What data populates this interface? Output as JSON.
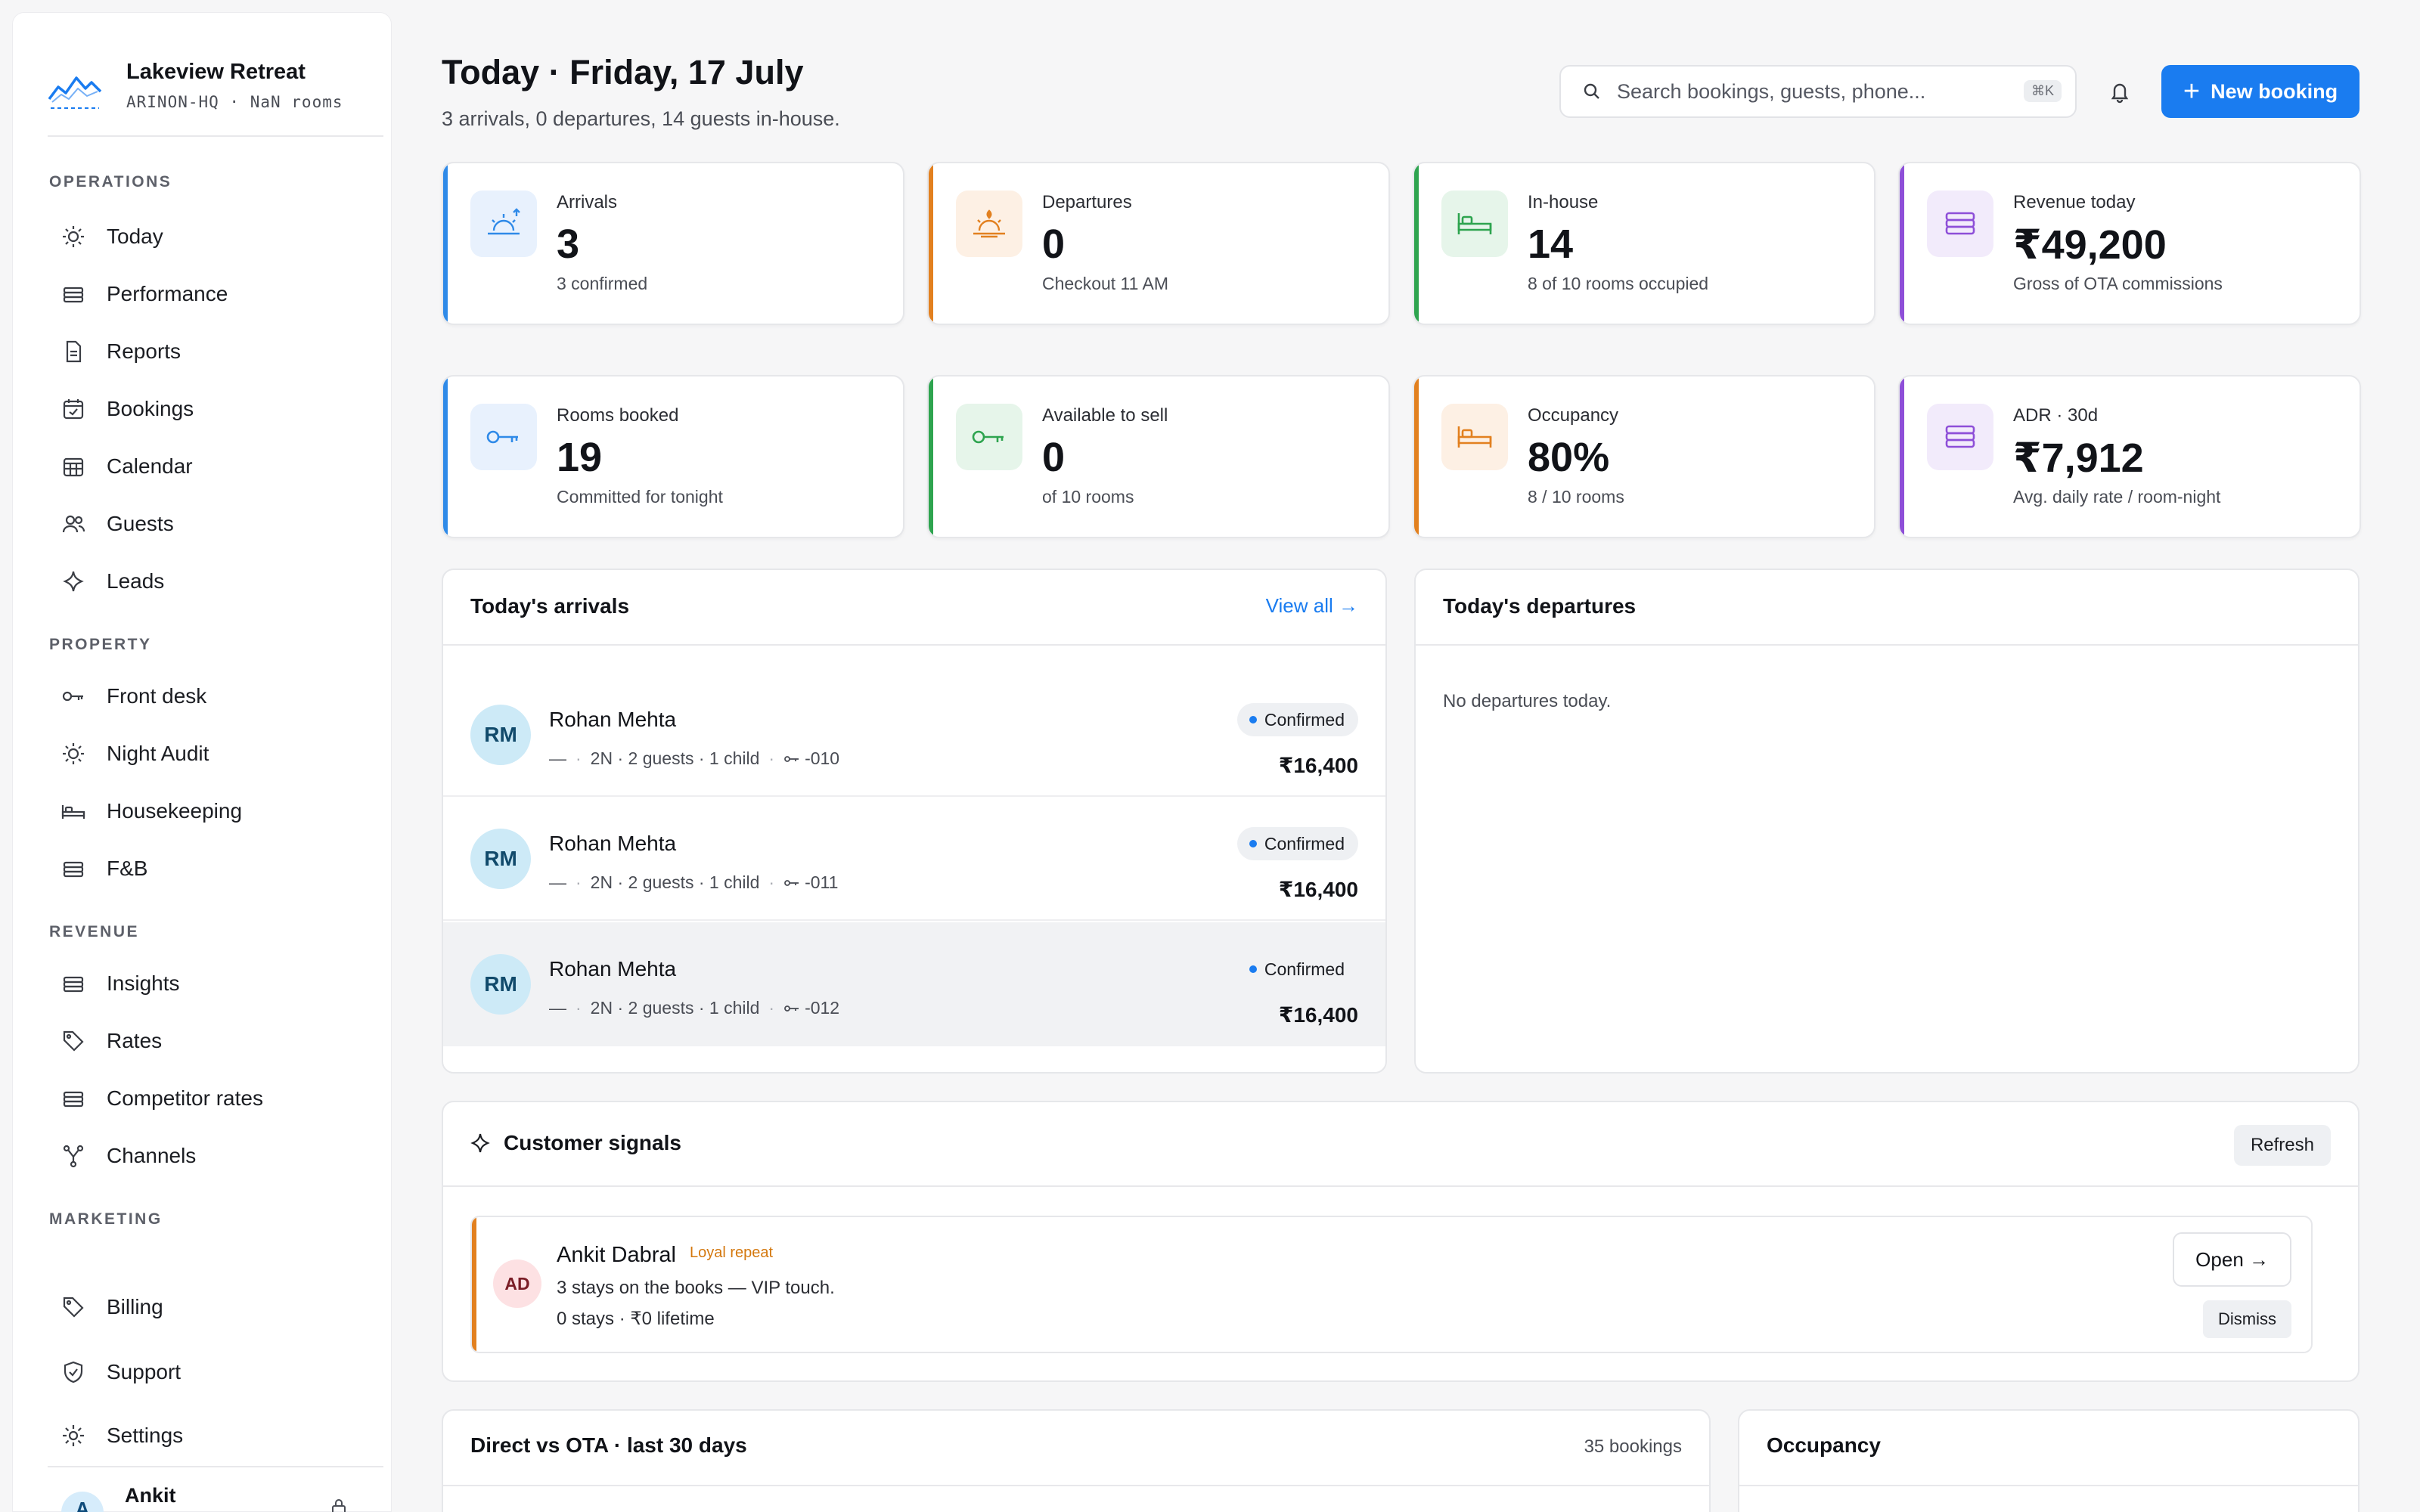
{
  "sidebar": {
    "brand": {
      "title": "Lakeview Retreat",
      "subtitle": "ARINON-HQ · NaN rooms"
    },
    "sections": {
      "operations": "OPERATIONS",
      "property": "PROPERTY",
      "revenue": "REVENUE",
      "marketing": "MARKETING"
    },
    "items": {
      "today": "Today",
      "performance": "Performance",
      "reports": "Reports",
      "bookings": "Bookings",
      "calendar": "Calendar",
      "guests": "Guests",
      "leads": "Leads",
      "front_desk": "Front desk",
      "night_audit": "Night Audit",
      "housekeeping": "Housekeeping",
      "fnb": "F&B",
      "insights": "Insights",
      "rates": "Rates",
      "competitor_rates": "Competitor rates",
      "channels": "Channels",
      "billing": "Billing",
      "support": "Support",
      "settings": "Settings"
    },
    "user": {
      "initial": "A",
      "name": "Ankit"
    }
  },
  "header": {
    "title": "Today · Friday, 17 July",
    "subtitle": "3 arrivals, 0 departures, 14 guests in-house.",
    "search_placeholder": "Search bookings, guests, phone...",
    "search_shortcut": "⌘K",
    "new_booking": "New booking"
  },
  "stats": {
    "arrivals": {
      "label": "Arrivals",
      "value": "3",
      "sub": "3 confirmed",
      "accent": "#2f8ae8"
    },
    "departures": {
      "label": "Departures",
      "value": "0",
      "sub": "Checkout 11 AM",
      "accent": "#e2801f"
    },
    "inhouse": {
      "label": "In-house",
      "value": "14",
      "sub": "8 of 10 rooms occupied",
      "accent": "#2ea44f"
    },
    "revenue": {
      "label": "Revenue today",
      "value": "₹49,200",
      "sub": "Gross of OTA commissions",
      "accent": "#8e4fd8"
    },
    "rooms_booked": {
      "label": "Rooms booked",
      "value": "19",
      "sub": "Committed for tonight",
      "accent": "#2f8ae8"
    },
    "available": {
      "label": "Available to sell",
      "value": "0",
      "sub": "of 10 rooms",
      "accent": "#2ea44f"
    },
    "occupancy": {
      "label": "Occupancy",
      "value": "80%",
      "sub": "8 / 10 rooms",
      "accent": "#e2801f"
    },
    "adr": {
      "label": "ADR · 30d",
      "value": "₹7,912",
      "sub": "Avg. daily rate / room-night",
      "accent": "#8e4fd8"
    }
  },
  "arrivals_panel": {
    "title": "Today's arrivals",
    "view_all": "View all →",
    "rows": [
      {
        "initials": "RM",
        "name": "Rohan Mehta",
        "dash": "—",
        "stay": "2N · 2 guests · 1 child",
        "room": "-010",
        "status": "Confirmed",
        "amount": "₹16,400"
      },
      {
        "initials": "RM",
        "name": "Rohan Mehta",
        "dash": "—",
        "stay": "2N · 2 guests · 1 child",
        "room": "-011",
        "status": "Confirmed",
        "amount": "₹16,400"
      },
      {
        "initials": "RM",
        "name": "Rohan Mehta",
        "dash": "—",
        "stay": "2N · 2 guests · 1 child",
        "room": "-012",
        "status": "Confirmed",
        "amount": "₹16,400"
      }
    ]
  },
  "departures_panel": {
    "title": "Today's departures",
    "empty": "No departures today."
  },
  "signals": {
    "title": "Customer signals",
    "refresh": "Refresh",
    "card": {
      "initials": "AD",
      "name": "Ankit Dabral",
      "tag": "Loyal repeat",
      "line1": "3 stays on the books — VIP touch.",
      "line2": "0 stays · ₹0 lifetime",
      "open": "Open →",
      "dismiss": "Dismiss"
    }
  },
  "direct_ota": {
    "title": "Direct vs OTA · last 30 days",
    "count": "35 bookings"
  },
  "occupancy_panel": {
    "title": "Occupancy"
  }
}
